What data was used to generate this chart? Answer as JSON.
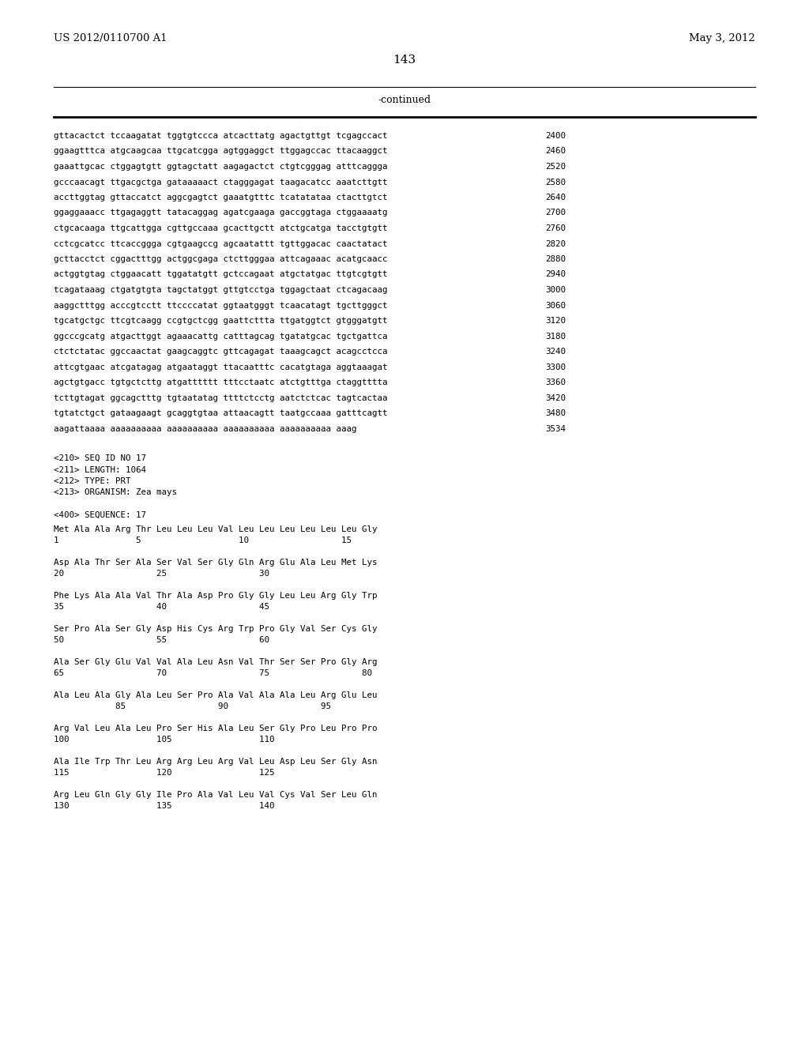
{
  "header_left": "US 2012/0110700 A1",
  "header_right": "May 3, 2012",
  "page_number": "143",
  "continued_label": "-continued",
  "background_color": "#ffffff",
  "text_color": "#000000",
  "sequence_lines": [
    [
      "gttacactct tccaagatat tggtgtccca atcacttatg agactgttgt tcgagccact",
      "2400"
    ],
    [
      "ggaagtttca atgcaagcaa ttgcatcgga agtggaggct ttggagccac ttacaaggct",
      "2460"
    ],
    [
      "gaaattgcac ctggagtgtt ggtagctatt aagagactct ctgtcgggag atttcaggga",
      "2520"
    ],
    [
      "gcccaacagt ttgacgctga gataaaaact ctagggagat taagacatcc aaatcttgtt",
      "2580"
    ],
    [
      "accttggtag gttaccatct aggcgagtct gaaatgtttc tcatatataa ctacttgtct",
      "2640"
    ],
    [
      "ggaggaaacc ttgagaggtt tatacaggag agatcgaaga gaccggtaga ctggaaaatg",
      "2700"
    ],
    [
      "ctgcacaaga ttgcattgga cgttgccaaa gcacttgctt atctgcatga tacctgtgtt",
      "2760"
    ],
    [
      "cctcgcatcc ttcaccggga cgtgaagccg agcaatattt tgttggacac caactatact",
      "2820"
    ],
    [
      "gcttacctct cggactttgg actggcgaga ctcttgggaa attcagaaac acatgcaacc",
      "2880"
    ],
    [
      "actggtgtag ctggaacatt tggatatgtt gctccagaat atgctatgac ttgtcgtgtt",
      "2940"
    ],
    [
      "tcagataaag ctgatgtgta tagctatggt gttgtcctga tggagctaat ctcagacaag",
      "3000"
    ],
    [
      "aaggctttgg acccgtcctt ttccccatat ggtaatgggt tcaacatagt tgcttgggct",
      "3060"
    ],
    [
      "tgcatgctgc ttcgtcaagg ccgtgctcgg gaattcttta ttgatggtct gtgggatgtt",
      "3120"
    ],
    [
      "ggcccgcatg atgacttggt agaaacattg catttagcag tgatatgcac tgctgattca",
      "3180"
    ],
    [
      "ctctctatac ggccaactat gaagcaggtc gttcagagat taaagcagct acagcctcca",
      "3240"
    ],
    [
      "attcgtgaac atcgatagag atgaataggt ttacaatttc cacatgtaga aggtaaagat",
      "3300"
    ],
    [
      "agctgtgacc tgtgctcttg atgatttttt tttcctaatc atctgtttga ctaggtttta",
      "3360"
    ],
    [
      "tcttgtagat ggcagctttg tgtaatatag ttttctcctg aatctctcac tagtcactaa",
      "3420"
    ],
    [
      "tgtatctgct gataagaagt gcaggtgtaa attaacagtt taatgccaaa gatttcagtt",
      "3480"
    ],
    [
      "aagattaaaa aaaaaaaaaa aaaaaaaaaa aaaaaaaaaa aaaaaaaaaa aaag",
      "3534"
    ]
  ],
  "metadata_lines": [
    "<210> SEQ ID NO 17",
    "<211> LENGTH: 1064",
    "<212> TYPE: PRT",
    "<213> ORGANISM: Zea mays"
  ],
  "sequence_label": "<400> SEQUENCE: 17",
  "protein_lines": [
    "Met Ala Ala Arg Thr Leu Leu Leu Val Leu Leu Leu Leu Leu Leu Gly",
    "1               5                   10                  15",
    "",
    "Asp Ala Thr Ser Ala Ser Val Ser Gly Gln Arg Glu Ala Leu Met Lys",
    "20                  25                  30",
    "",
    "Phe Lys Ala Ala Val Thr Ala Asp Pro Gly Gly Leu Leu Arg Gly Trp",
    "35                  40                  45",
    "",
    "Ser Pro Ala Ser Gly Asp His Cys Arg Trp Pro Gly Val Ser Cys Gly",
    "50                  55                  60",
    "",
    "Ala Ser Gly Glu Val Val Ala Leu Asn Val Thr Ser Ser Pro Gly Arg",
    "65                  70                  75                  80",
    "",
    "Ala Leu Ala Gly Ala Leu Ser Pro Ala Val Ala Ala Leu Arg Glu Leu",
    "            85                  90                  95",
    "",
    "Arg Val Leu Ala Leu Pro Ser His Ala Leu Ser Gly Pro Leu Pro Pro",
    "100                 105                 110",
    "",
    "Ala Ile Trp Thr Leu Arg Arg Leu Arg Val Leu Asp Leu Ser Gly Asn",
    "115                 120                 125",
    "",
    "Arg Leu Gln Gly Gly Ile Pro Ala Val Leu Val Cys Val Ser Leu Gln",
    "130                 135                 140"
  ]
}
